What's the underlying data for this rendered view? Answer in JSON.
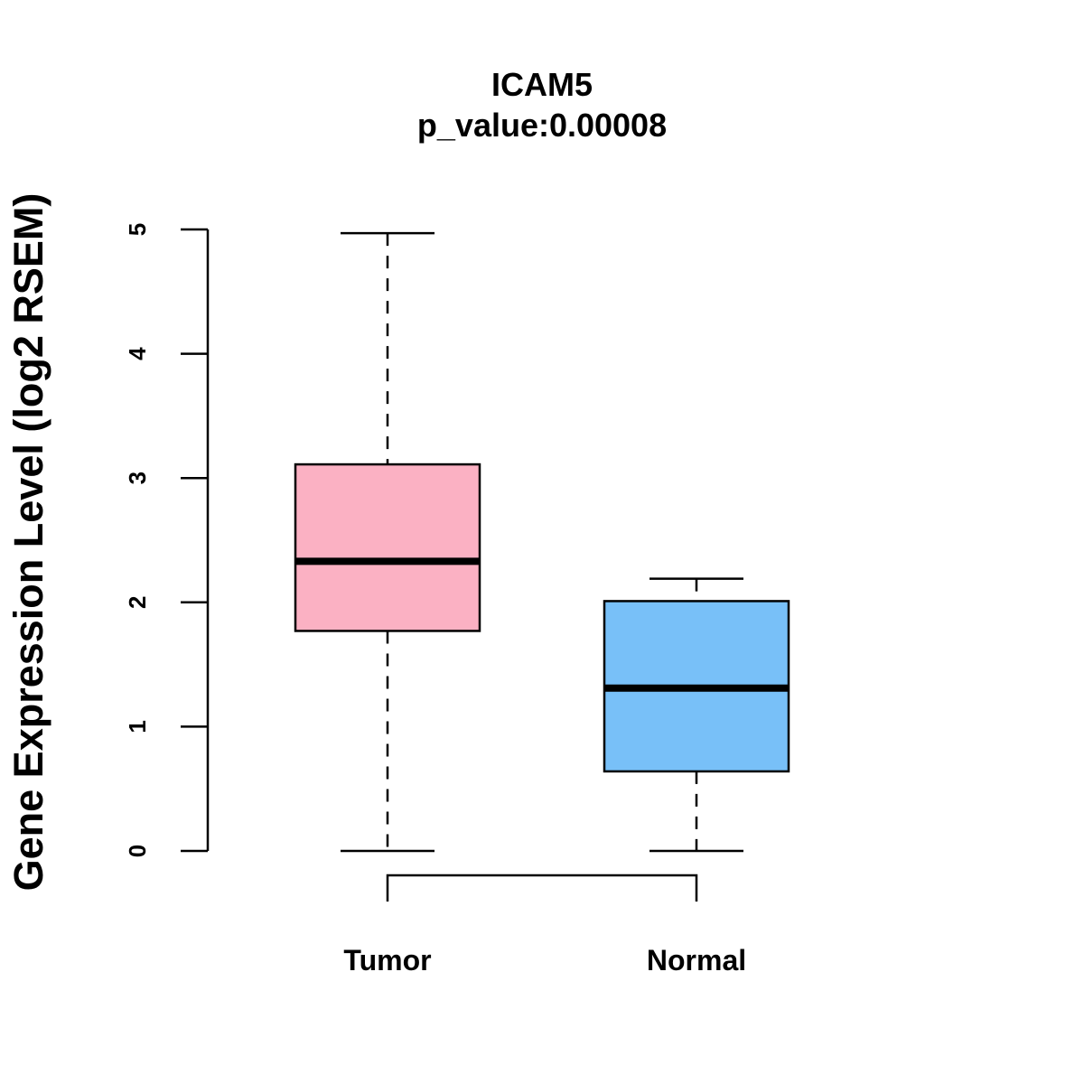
{
  "chart_data": {
    "type": "boxplot",
    "title": "ICAM5",
    "subtitle": "p_value:0.00008",
    "xlabel": "",
    "ylabel": "Gene Expression Level (log2 RSEM)",
    "ylim": [
      0,
      5
    ],
    "yticks": [
      0,
      1,
      2,
      3,
      4,
      5
    ],
    "grid": false,
    "categories": [
      "Tumor",
      "Normal"
    ],
    "boxes": [
      {
        "name": "Tumor",
        "min": 0.0,
        "q1": 1.77,
        "median": 2.33,
        "q3": 3.11,
        "max": 4.97,
        "color": "#FBB1C3"
      },
      {
        "name": "Normal",
        "min": 0.0,
        "q1": 0.64,
        "median": 1.31,
        "q3": 2.01,
        "max": 2.19,
        "color": "#78C0F8"
      }
    ],
    "comparison_bracket": {
      "from": "Tumor",
      "to": "Normal"
    }
  }
}
